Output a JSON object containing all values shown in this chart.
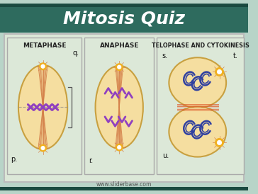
{
  "title": "Mitosis Quiz",
  "title_color": "#FFFFFF",
  "main_bg": "#b8d4c8",
  "panel_bg": "#dce8d8",
  "cell_fill": "#f5dea0",
  "cell_edge": "#c8a040",
  "subtitle1": "Metaphase",
  "subtitle2": "Anaphase",
  "subtitle3": "Telophase and Cytokinesis",
  "label_p": "p.",
  "label_q": "q.",
  "label_r": "r.",
  "label_s": "s.",
  "label_t": "t.",
  "label_u": "u.",
  "website": "www.sliderbase.com",
  "spindle_color": "#d4804a",
  "chromosome_color": "#9040c0",
  "dna_color": "#3040a0",
  "title_bg": "#2e6b5e",
  "title_bg_dark": "#1a4a40"
}
